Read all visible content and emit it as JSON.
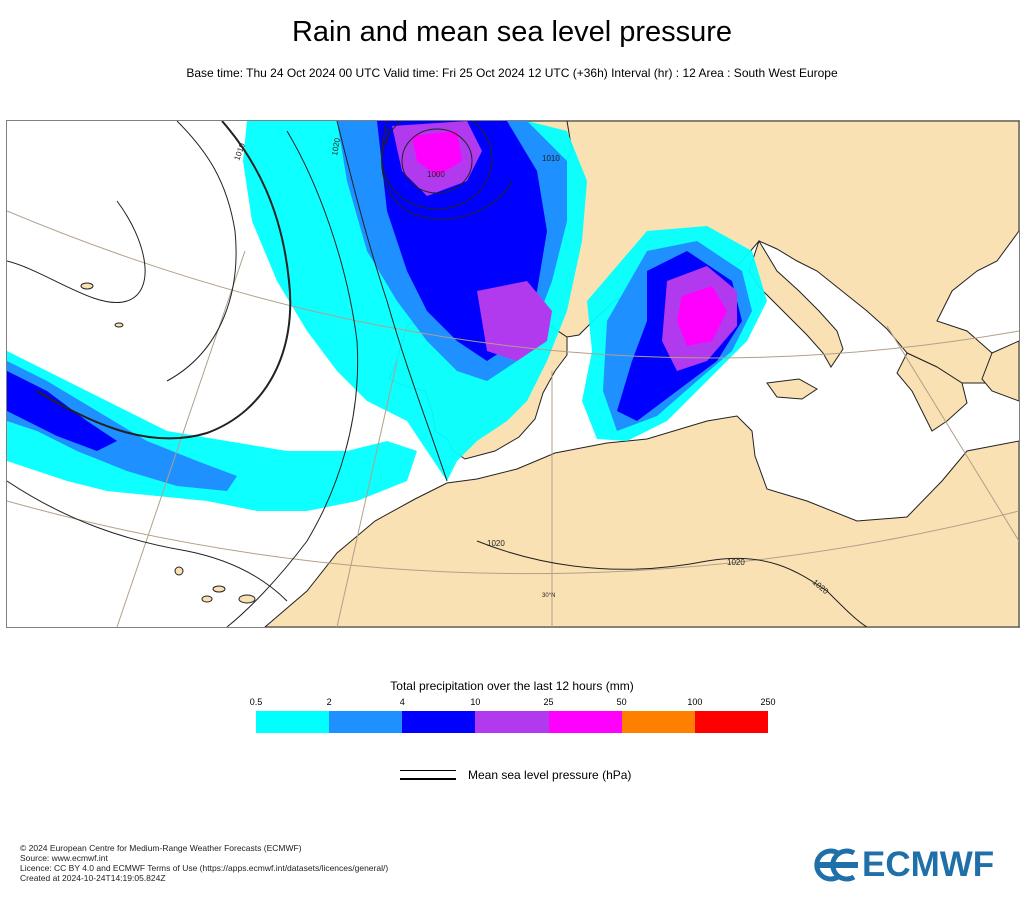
{
  "header": {
    "title": "Rain and mean sea level pressure",
    "subtitle": "Base time: Thu 24 Oct 2024 00 UTC Valid time: Fri 25 Oct 2024 12 UTC (+36h) Interval (hr) : 12 Area : South West Europe"
  },
  "map": {
    "isobar_labels": [
      "1010",
      "1020",
      "1010",
      "1000",
      "1020",
      "1020",
      "1010",
      "1020"
    ],
    "latitude_label": "30°N",
    "colors": {
      "land": "#fae1b4",
      "sea": "#ffffff",
      "coast": "#222222",
      "graticule": "#b0a08a"
    }
  },
  "legend": {
    "title": "Total precipitation over the last 12 hours (mm)",
    "ticks": [
      "0.5",
      "2",
      "4",
      "10",
      "25",
      "50",
      "100",
      "250"
    ],
    "colors": [
      "#00ffff",
      "#1e90ff",
      "#0000ff",
      "#b23aee",
      "#ff00ff",
      "#ff8000",
      "#ff0000"
    ],
    "mslp_label": "Mean sea level pressure (hPa)"
  },
  "footer": {
    "lines": [
      "© 2024 European Centre for Medium-Range Weather Forecasts (ECMWF)",
      "Source: www.ecmwf.int",
      "Licence: CC BY 4.0 and ECMWF Terms of Use (https://apps.ecmwf.int/datasets/licences/general/)",
      "Created at 2024-10-24T14:19:05.824Z"
    ],
    "logo_text": "ECMWF",
    "logo_color": "#1f6fa8"
  }
}
